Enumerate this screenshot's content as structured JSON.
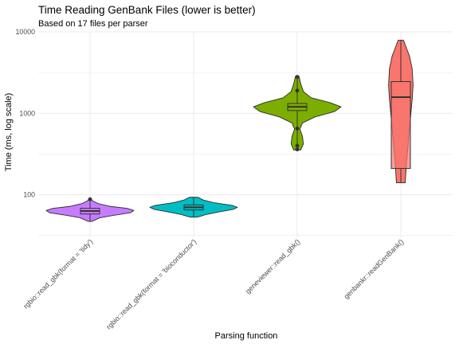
{
  "chart_data": {
    "type": "violin",
    "title": "Time Reading GenBank Files (lower is better)",
    "subtitle": "Based on 17 files per parser",
    "xlabel": "Parsing function",
    "ylabel": "Time (ms, log scale)",
    "y_scale": "log10",
    "ylim": [
      30,
      10000
    ],
    "y_ticks": [
      100,
      1000,
      10000
    ],
    "y_tick_labels": [
      "100",
      "1000",
      "10000"
    ],
    "grid": true,
    "legend": "none",
    "categories": [
      "rgbio::read_gbk(format = 'tidy')",
      "rgbio::read_gbk(format = 'bioconductor')",
      "geneviewer::read_gbk()",
      "genbankr::readGenBank()"
    ],
    "series": [
      {
        "color": "#C77CFF",
        "min": 47,
        "q1": 58,
        "median": 63,
        "q3": 68,
        "max": 88,
        "outliers": [
          88
        ],
        "density": [
          [
            47,
            0.04
          ],
          [
            52,
            0.22
          ],
          [
            56,
            0.55
          ],
          [
            60,
            0.92
          ],
          [
            64,
            1.0
          ],
          [
            68,
            0.85
          ],
          [
            72,
            0.45
          ],
          [
            78,
            0.18
          ],
          [
            84,
            0.06
          ],
          [
            88,
            0.03
          ]
        ]
      },
      {
        "color": "#00BFC4",
        "min": 53,
        "q1": 65,
        "median": 70,
        "q3": 75,
        "max": 93,
        "outliers": [],
        "density": [
          [
            53,
            0.08
          ],
          [
            57,
            0.28
          ],
          [
            61,
            0.55
          ],
          [
            66,
            0.9
          ],
          [
            70,
            1.0
          ],
          [
            74,
            0.88
          ],
          [
            80,
            0.45
          ],
          [
            86,
            0.22
          ],
          [
            93,
            0.1
          ]
        ]
      },
      {
        "color": "#7CAE00",
        "min": 355,
        "q1": 1080,
        "median": 1200,
        "q3": 1320,
        "max": 2850,
        "outliers": [
          2800,
          1900,
          650,
          400,
          360
        ],
        "density": [
          [
            355,
            0.08
          ],
          [
            420,
            0.14
          ],
          [
            520,
            0.12
          ],
          [
            640,
            0.06
          ],
          [
            760,
            0.12
          ],
          [
            900,
            0.4
          ],
          [
            1050,
            0.85
          ],
          [
            1200,
            1.0
          ],
          [
            1350,
            0.75
          ],
          [
            1550,
            0.32
          ],
          [
            1850,
            0.14
          ],
          [
            2300,
            0.08
          ],
          [
            2850,
            0.04
          ]
        ]
      },
      {
        "color": "#F8766D",
        "min": 140,
        "q1": 210,
        "median": 1580,
        "q3": 2450,
        "max": 7900,
        "outliers": [],
        "density": [
          [
            140,
            0.1
          ],
          [
            250,
            0.13
          ],
          [
            500,
            0.18
          ],
          [
            1000,
            0.23
          ],
          [
            1500,
            0.26
          ],
          [
            2200,
            0.28
          ],
          [
            3500,
            0.26
          ],
          [
            5000,
            0.2
          ],
          [
            6500,
            0.12
          ],
          [
            7900,
            0.06
          ]
        ]
      }
    ]
  }
}
